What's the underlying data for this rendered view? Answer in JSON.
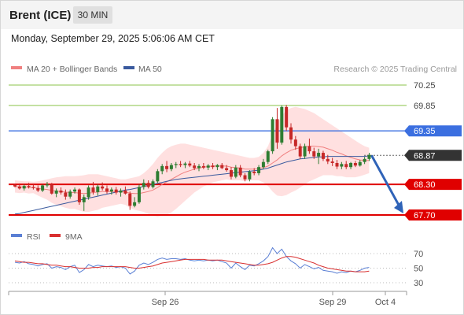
{
  "header": {
    "instrument": "Brent (ICE)",
    "timeframe": "30 MIN"
  },
  "datetime": "Monday, September 29, 2025 5:06:06 AM CET",
  "legend": {
    "ma20": "MA 20 + Bollinger Bands",
    "ma50": "MA 50",
    "credit": "Research © 2025 Trading Central"
  },
  "rsi_legend": {
    "rsi": "RSI",
    "ma": "9MA"
  },
  "colors": {
    "up": "#2e7d32",
    "down": "#c62828",
    "resistance": "#8bc34a",
    "pivot": "#3b6fe0",
    "support": "#e00000",
    "last": "#333333",
    "ma20": "#f08080",
    "ma50": "#3a5a9e",
    "band": "#ffd6d6",
    "rsi": "#5a7fd4",
    "rsi_ma": "#d93030"
  },
  "chart_data": [
    {
      "type": "candlestick",
      "x_ticks": [
        "Sep 26",
        "Sep 29",
        "Oct 4"
      ],
      "y_ticks": [
        70.25,
        69.85,
        69.35,
        68.87,
        68.3,
        67.7
      ],
      "ylim": [
        67.65,
        70.4
      ],
      "levels": [
        {
          "value": 70.25,
          "label": "70.25",
          "kind": "resistance"
        },
        {
          "value": 69.85,
          "label": "69.85",
          "kind": "resistance"
        },
        {
          "value": 69.35,
          "label": "69.35",
          "kind": "pivot"
        },
        {
          "value": 68.87,
          "label": "68.87",
          "kind": "last"
        },
        {
          "value": 68.3,
          "label": "68.30",
          "kind": "support"
        },
        {
          "value": 67.7,
          "label": "67.70",
          "kind": "support"
        }
      ],
      "candles": [
        [
          68.29,
          68.31,
          68.24,
          68.26
        ],
        [
          68.26,
          68.32,
          68.2,
          68.22
        ],
        [
          68.22,
          68.3,
          68.18,
          68.27
        ],
        [
          68.27,
          68.33,
          68.22,
          68.25
        ],
        [
          68.25,
          68.3,
          68.2,
          68.23
        ],
        [
          68.23,
          68.28,
          68.15,
          68.18
        ],
        [
          68.18,
          68.3,
          68.15,
          68.28
        ],
        [
          68.28,
          68.35,
          68.24,
          68.3
        ],
        [
          68.3,
          68.33,
          68.1,
          68.12
        ],
        [
          68.12,
          68.22,
          68.05,
          68.18
        ],
        [
          68.18,
          68.24,
          68.1,
          68.14
        ],
        [
          68.14,
          68.2,
          68.0,
          68.06
        ],
        [
          68.06,
          68.2,
          68.02,
          68.16
        ],
        [
          68.16,
          68.24,
          68.12,
          68.2
        ],
        [
          68.2,
          68.22,
          67.9,
          67.95
        ],
        [
          67.95,
          68.1,
          67.78,
          68.05
        ],
        [
          68.05,
          68.28,
          68.0,
          68.24
        ],
        [
          68.24,
          68.35,
          68.1,
          68.15
        ],
        [
          68.15,
          68.3,
          68.08,
          68.26
        ],
        [
          68.26,
          68.34,
          68.18,
          68.22
        ],
        [
          68.22,
          68.28,
          68.12,
          68.16
        ],
        [
          68.16,
          68.24,
          68.1,
          68.2
        ],
        [
          68.2,
          68.25,
          68.1,
          68.14
        ],
        [
          68.14,
          68.22,
          68.06,
          68.18
        ],
        [
          68.18,
          68.26,
          68.1,
          68.12
        ],
        [
          68.12,
          68.16,
          67.8,
          67.88
        ],
        [
          67.88,
          68.05,
          67.85,
          67.95
        ],
        [
          67.95,
          68.3,
          67.92,
          68.25
        ],
        [
          68.25,
          68.4,
          68.2,
          68.33
        ],
        [
          68.33,
          68.38,
          68.22,
          68.25
        ],
        [
          68.25,
          68.4,
          68.22,
          68.36
        ],
        [
          68.36,
          68.6,
          68.33,
          68.56
        ],
        [
          68.56,
          68.7,
          68.5,
          68.66
        ],
        [
          68.66,
          68.76,
          68.54,
          68.6
        ],
        [
          68.6,
          68.72,
          68.56,
          68.68
        ],
        [
          68.68,
          68.74,
          68.62,
          68.7
        ],
        [
          68.7,
          68.76,
          68.64,
          68.68
        ],
        [
          68.68,
          68.74,
          68.62,
          68.71
        ],
        [
          68.71,
          68.76,
          68.64,
          68.67
        ],
        [
          68.67,
          68.72,
          68.58,
          68.62
        ],
        [
          68.62,
          68.7,
          68.56,
          68.66
        ],
        [
          68.66,
          68.72,
          68.6,
          68.63
        ],
        [
          68.63,
          68.7,
          68.58,
          68.67
        ],
        [
          68.67,
          68.72,
          68.6,
          68.64
        ],
        [
          68.64,
          68.7,
          68.58,
          68.68
        ],
        [
          68.68,
          68.72,
          68.6,
          68.62
        ],
        [
          68.62,
          68.68,
          68.55,
          68.58
        ],
        [
          68.58,
          68.64,
          68.4,
          68.45
        ],
        [
          68.45,
          68.68,
          68.42,
          68.63
        ],
        [
          68.63,
          68.68,
          68.44,
          68.48
        ],
        [
          68.48,
          68.52,
          68.36,
          68.4
        ],
        [
          68.4,
          68.58,
          68.36,
          68.55
        ],
        [
          68.55,
          68.62,
          68.48,
          68.52
        ],
        [
          68.52,
          68.68,
          68.48,
          68.64
        ],
        [
          68.64,
          68.8,
          68.6,
          68.74
        ],
        [
          68.74,
          68.98,
          68.7,
          68.95
        ],
        [
          68.95,
          69.62,
          68.9,
          69.58
        ],
        [
          69.58,
          69.8,
          69.0,
          69.12
        ],
        [
          69.12,
          69.85,
          69.08,
          69.82
        ],
        [
          69.82,
          69.86,
          69.35,
          69.42
        ],
        [
          69.42,
          69.5,
          69.1,
          69.18
        ],
        [
          69.18,
          69.25,
          68.98,
          69.05
        ],
        [
          69.05,
          69.1,
          68.8,
          68.85
        ],
        [
          68.85,
          69.1,
          68.8,
          69.05
        ],
        [
          69.05,
          69.2,
          68.9,
          68.95
        ],
        [
          68.95,
          69.02,
          68.8,
          68.85
        ],
        [
          68.85,
          69.0,
          68.7,
          68.92
        ],
        [
          68.92,
          68.96,
          68.76,
          68.8
        ],
        [
          68.8,
          68.88,
          68.7,
          68.75
        ],
        [
          68.75,
          68.82,
          68.66,
          68.72
        ],
        [
          68.72,
          68.78,
          68.6,
          68.65
        ],
        [
          68.65,
          68.74,
          68.6,
          68.7
        ],
        [
          68.7,
          68.76,
          68.6,
          68.64
        ],
        [
          68.64,
          68.74,
          68.6,
          68.72
        ],
        [
          68.72,
          68.76,
          68.64,
          68.67
        ],
        [
          68.67,
          68.78,
          68.65,
          68.74
        ],
        [
          68.74,
          68.84,
          68.7,
          68.8
        ],
        [
          68.8,
          68.92,
          68.76,
          68.88
        ]
      ],
      "ma20": [
        68.26,
        68.25,
        68.25,
        68.24,
        68.24,
        68.22,
        68.21,
        68.2,
        68.18,
        68.17,
        68.16,
        68.15,
        68.14,
        68.14,
        68.13,
        68.12,
        68.13,
        68.14,
        68.15,
        68.16,
        68.16,
        68.16,
        68.16,
        68.16,
        68.15,
        68.13,
        68.12,
        68.12,
        68.14,
        68.16,
        68.19,
        68.24,
        68.3,
        68.35,
        68.4,
        68.45,
        68.5,
        68.54,
        68.57,
        68.6,
        68.62,
        68.64,
        68.65,
        68.66,
        68.66,
        68.66,
        68.66,
        68.64,
        68.63,
        68.62,
        68.6,
        68.6,
        68.6,
        68.61,
        68.63,
        68.66,
        68.72,
        68.78,
        68.86,
        68.92,
        68.97,
        69.0,
        69.02,
        69.04,
        69.05,
        69.05,
        69.04,
        69.03,
        69.0,
        68.97,
        68.93,
        68.9,
        68.86,
        68.83,
        68.8,
        68.78,
        68.77,
        68.77
      ],
      "upper": [
        68.38,
        68.37,
        68.36,
        68.36,
        68.35,
        68.36,
        68.38,
        68.4,
        68.42,
        68.44,
        68.45,
        68.46,
        68.46,
        68.46,
        68.47,
        68.48,
        68.5,
        68.5,
        68.5,
        68.48,
        68.46,
        68.44,
        68.42,
        68.4,
        68.4,
        68.42,
        68.44,
        68.46,
        68.52,
        68.6,
        68.7,
        68.82,
        68.92,
        69.0,
        69.05,
        69.08,
        69.1,
        69.1,
        69.08,
        69.06,
        69.04,
        69.02,
        69.0,
        68.98,
        68.96,
        68.94,
        68.92,
        68.9,
        68.88,
        68.86,
        68.84,
        68.82,
        68.82,
        68.84,
        68.92,
        69.05,
        69.28,
        69.48,
        69.65,
        69.75,
        69.8,
        69.82,
        69.8,
        69.78,
        69.74,
        69.7,
        69.64,
        69.58,
        69.52,
        69.46,
        69.4,
        69.34,
        69.28,
        69.22,
        69.16,
        69.1,
        69.05,
        69.02
      ],
      "lower": [
        68.14,
        68.13,
        68.14,
        68.12,
        68.13,
        68.08,
        68.04,
        68.0,
        67.94,
        67.9,
        67.87,
        67.84,
        67.82,
        67.82,
        67.79,
        67.76,
        67.76,
        67.78,
        67.8,
        67.84,
        67.86,
        67.88,
        67.9,
        67.92,
        67.9,
        67.84,
        67.8,
        67.78,
        67.76,
        67.72,
        67.68,
        67.66,
        67.68,
        67.7,
        67.75,
        67.82,
        67.9,
        67.98,
        68.06,
        68.14,
        68.2,
        68.26,
        68.3,
        68.34,
        68.36,
        68.38,
        68.4,
        68.38,
        68.38,
        68.38,
        68.36,
        68.38,
        68.38,
        68.38,
        68.34,
        68.27,
        68.16,
        68.08,
        68.07,
        68.09,
        68.14,
        68.18,
        68.24,
        68.3,
        68.36,
        68.4,
        68.44,
        68.48,
        68.48,
        68.48,
        68.46,
        68.46,
        68.44,
        68.44,
        68.44,
        68.46,
        68.49,
        68.52
      ],
      "ma50": [
        67.72,
        67.73,
        67.75,
        67.77,
        67.79,
        67.81,
        67.83,
        67.85,
        67.87,
        67.89,
        67.91,
        67.93,
        67.95,
        67.97,
        67.99,
        68.01,
        68.03,
        68.05,
        68.07,
        68.09,
        68.11,
        68.13,
        68.15,
        68.17,
        68.19,
        68.2,
        68.22,
        68.24,
        68.26,
        68.28,
        68.3,
        68.32,
        68.34,
        68.36,
        68.38,
        68.4,
        68.41,
        68.42,
        68.43,
        68.44,
        68.45,
        68.46,
        68.47,
        68.48,
        68.49,
        68.5,
        68.51,
        68.52,
        68.53,
        68.54,
        68.55,
        68.56,
        68.57,
        68.58,
        68.6,
        68.62,
        68.65,
        68.68,
        68.71,
        68.74,
        68.76,
        68.78,
        68.8,
        68.81,
        68.82,
        68.83,
        68.84,
        68.84,
        68.85,
        68.85,
        68.85,
        68.85,
        68.85,
        68.85,
        68.85,
        68.85,
        68.85,
        68.86
      ],
      "forecast": [
        68.87,
        67.7
      ]
    },
    {
      "type": "line",
      "title": "RSI",
      "y_ticks": [
        70,
        50,
        30
      ],
      "ylim": [
        20,
        80
      ],
      "series": [
        {
          "name": "RSI",
          "values": [
            58,
            57,
            59,
            56,
            55,
            53,
            55,
            56,
            50,
            52,
            51,
            48,
            52,
            54,
            44,
            48,
            55,
            52,
            54,
            53,
            52,
            53,
            51,
            52,
            50,
            42,
            46,
            54,
            57,
            55,
            58,
            62,
            64,
            62,
            63,
            63,
            62,
            63,
            61,
            60,
            61,
            60,
            61,
            60,
            61,
            59,
            57,
            50,
            57,
            52,
            48,
            54,
            53,
            56,
            60,
            66,
            78,
            70,
            76,
            66,
            60,
            56,
            50,
            55,
            52,
            49,
            51,
            47,
            46,
            45,
            43,
            45,
            44,
            46,
            45,
            47,
            50,
            51
          ]
        },
        {
          "name": "9MA",
          "values": [
            60,
            59,
            58,
            58,
            57,
            56,
            56,
            55,
            54,
            54,
            53,
            52,
            52,
            51,
            50,
            50,
            50,
            51,
            51,
            52,
            52,
            52,
            52,
            52,
            52,
            51,
            50,
            50,
            51,
            52,
            53,
            55,
            57,
            58,
            59,
            60,
            61,
            62,
            62,
            62,
            62,
            62,
            61,
            61,
            61,
            61,
            60,
            59,
            58,
            57,
            56,
            55,
            54,
            54,
            55,
            56,
            58,
            61,
            64,
            66,
            66,
            65,
            63,
            61,
            59,
            57,
            54,
            52,
            50,
            49,
            48,
            47,
            46,
            46,
            45,
            45,
            45,
            46
          ]
        }
      ]
    }
  ]
}
